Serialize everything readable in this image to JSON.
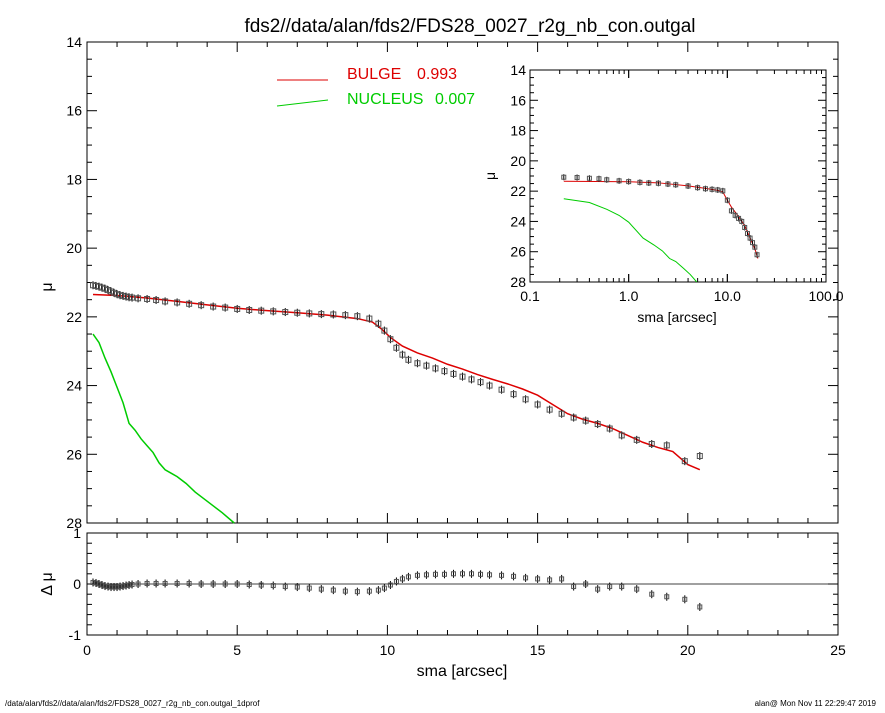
{
  "title": "fds2//data/alan/fds2/FDS28_0027_r2g_nb_con.outgal",
  "footer_left": "/data/alan/fds2//data/alan/fds2/FDS28_0027_r2g_nb_con.outgal_1dprof",
  "footer_right": "alan@  Mon Nov 11 22:29:47 2019",
  "colors": {
    "data": "#555555",
    "bulge": "#dd0000",
    "nucleus": "#00cc00",
    "axis": "#000000"
  },
  "chart_data": [
    {
      "type": "line",
      "panel": "main",
      "ylabel": "μ",
      "xlim": [
        0,
        25
      ],
      "ylim": [
        28,
        14
      ],
      "y_inverted": true,
      "yticks": [
        "14",
        "16",
        "18",
        "20",
        "22",
        "24",
        "26",
        "28"
      ],
      "legend": [
        {
          "name": "BULGE",
          "value": "0.993"
        },
        {
          "name": "NUCLEUS",
          "value": "0.007"
        }
      ],
      "legend_position": "top-center",
      "series": [
        {
          "name": "data",
          "style": "square-markers-with-errorbars",
          "x": [
            0.2,
            0.3,
            0.4,
            0.5,
            0.6,
            0.7,
            0.8,
            0.9,
            1.0,
            1.1,
            1.2,
            1.3,
            1.4,
            1.5,
            1.7,
            2.0,
            2.3,
            2.6,
            3.0,
            3.4,
            3.8,
            4.2,
            4.6,
            5.0,
            5.4,
            5.8,
            6.2,
            6.6,
            7.0,
            7.4,
            7.8,
            8.2,
            8.6,
            9.0,
            9.4,
            9.7,
            9.9,
            10.1,
            10.3,
            10.5,
            10.7,
            11.0,
            11.3,
            11.6,
            11.9,
            12.2,
            12.5,
            12.8,
            13.1,
            13.4,
            13.8,
            14.2,
            14.6,
            15.0,
            15.4,
            15.8,
            16.2,
            16.6,
            17.0,
            17.4,
            17.8,
            18.3,
            18.8,
            19.3,
            19.9,
            20.4
          ],
          "y": [
            21.08,
            21.1,
            21.12,
            21.15,
            21.18,
            21.22,
            21.26,
            21.3,
            21.34,
            21.37,
            21.39,
            21.41,
            21.43,
            21.44,
            21.46,
            21.48,
            21.51,
            21.55,
            21.58,
            21.62,
            21.66,
            21.7,
            21.73,
            21.77,
            21.8,
            21.82,
            21.84,
            21.86,
            21.88,
            21.9,
            21.92,
            21.93,
            21.95,
            21.98,
            22.05,
            22.2,
            22.4,
            22.65,
            22.9,
            23.1,
            23.25,
            23.35,
            23.42,
            23.5,
            23.58,
            23.66,
            23.74,
            23.82,
            23.9,
            24.0,
            24.12,
            24.25,
            24.4,
            24.55,
            24.7,
            24.82,
            24.93,
            25.02,
            25.12,
            25.25,
            25.45,
            25.58,
            25.7,
            25.74,
            26.2,
            26.05
          ]
        },
        {
          "name": "BULGE",
          "style": "line",
          "x": [
            0.2,
            1.0,
            2.0,
            3.0,
            4.0,
            5.0,
            6.0,
            7.0,
            8.0,
            9.0,
            9.5,
            9.8,
            10.1,
            10.5,
            11.0,
            11.5,
            12.0,
            12.5,
            13.0,
            13.5,
            14.0,
            14.5,
            15.0,
            15.5,
            16.0,
            16.5,
            17.0,
            17.5,
            18.0,
            18.5,
            19.0,
            19.5,
            20.0,
            20.4
          ],
          "y": [
            21.35,
            21.38,
            21.45,
            21.55,
            21.65,
            21.75,
            21.82,
            21.88,
            21.95,
            22.05,
            22.15,
            22.35,
            22.6,
            22.85,
            23.05,
            23.2,
            23.38,
            23.52,
            23.68,
            23.82,
            23.95,
            24.1,
            24.28,
            24.55,
            24.82,
            24.98,
            25.1,
            25.25,
            25.45,
            25.65,
            25.8,
            25.92,
            26.3,
            26.45
          ]
        },
        {
          "name": "NUCLEUS",
          "style": "line",
          "x": [
            0.2,
            0.4,
            0.6,
            0.8,
            1.0,
            1.2,
            1.4,
            1.6,
            1.8,
            2.0,
            2.2,
            2.4,
            2.6,
            2.8,
            3.0,
            3.3,
            3.6,
            3.9,
            4.2,
            4.5,
            4.9
          ],
          "y": [
            22.5,
            22.75,
            23.2,
            23.6,
            24.05,
            24.5,
            25.1,
            25.3,
            25.55,
            25.75,
            25.95,
            26.25,
            26.45,
            26.55,
            26.65,
            26.85,
            27.1,
            27.3,
            27.5,
            27.7,
            28.0
          ]
        }
      ]
    },
    {
      "type": "scatter",
      "panel": "residual",
      "xlabel": "sma [arcsec]",
      "ylabel": "Δ μ",
      "xlim": [
        0,
        25
      ],
      "ylim": [
        -1,
        1
      ],
      "xticks": [
        "0",
        "5",
        "10",
        "15",
        "20",
        "25"
      ],
      "yticks": [
        "-1",
        "0",
        "1"
      ],
      "series": [
        {
          "name": "residual",
          "x": [
            0.2,
            0.3,
            0.4,
            0.5,
            0.6,
            0.7,
            0.8,
            0.9,
            1.0,
            1.1,
            1.2,
            1.3,
            1.4,
            1.5,
            1.7,
            2.0,
            2.3,
            2.6,
            3.0,
            3.4,
            3.8,
            4.2,
            4.6,
            5.0,
            5.4,
            5.8,
            6.2,
            6.6,
            7.0,
            7.4,
            7.8,
            8.2,
            8.6,
            9.0,
            9.4,
            9.7,
            9.9,
            10.1,
            10.3,
            10.5,
            10.7,
            11.0,
            11.3,
            11.6,
            11.9,
            12.2,
            12.5,
            12.8,
            13.1,
            13.4,
            13.8,
            14.2,
            14.6,
            15.0,
            15.4,
            15.8,
            16.2,
            16.6,
            17.0,
            17.4,
            17.8,
            18.3,
            18.8,
            19.3,
            19.9,
            20.4
          ],
          "y": [
            0.03,
            0.02,
            0.0,
            -0.02,
            -0.04,
            -0.05,
            -0.06,
            -0.06,
            -0.06,
            -0.05,
            -0.04,
            -0.03,
            -0.02,
            -0.01,
            0.0,
            0.01,
            0.01,
            0.01,
            0.01,
            0.01,
            0.0,
            0.0,
            0.0,
            0.0,
            -0.01,
            -0.02,
            -0.03,
            -0.05,
            -0.06,
            -0.08,
            -0.1,
            -0.12,
            -0.14,
            -0.15,
            -0.14,
            -0.12,
            -0.08,
            -0.02,
            0.05,
            0.1,
            0.14,
            0.17,
            0.18,
            0.19,
            0.19,
            0.2,
            0.2,
            0.2,
            0.19,
            0.18,
            0.17,
            0.15,
            0.12,
            0.1,
            0.08,
            0.1,
            -0.05,
            0.0,
            -0.1,
            -0.05,
            -0.05,
            -0.1,
            -0.2,
            -0.25,
            -0.3,
            -0.45
          ]
        }
      ]
    },
    {
      "type": "line",
      "panel": "inset",
      "xlabel": "sma [arcsec]",
      "ylabel": "μ",
      "x_scale": "log",
      "xlim": [
        0.1,
        100.0
      ],
      "ylim": [
        28,
        14
      ],
      "y_inverted": true,
      "xticks": [
        "0.1",
        "1.0",
        "10.0",
        "100.0"
      ],
      "yticks": [
        "14",
        "16",
        "18",
        "20",
        "22",
        "24",
        "26",
        "28"
      ],
      "series": [
        {
          "name": "data",
          "x": [
            0.22,
            0.3,
            0.4,
            0.5,
            0.6,
            0.8,
            1.0,
            1.3,
            1.6,
            2.0,
            2.5,
            3.0,
            4.0,
            5.0,
            6.0,
            7.0,
            8.0,
            9.0,
            10.0,
            11.0,
            12.0,
            13.0,
            14.0,
            15.0,
            16.0,
            17.0,
            18.0,
            19.0,
            20.0
          ],
          "y": [
            21.08,
            21.1,
            21.15,
            21.18,
            21.25,
            21.32,
            21.37,
            21.42,
            21.46,
            21.48,
            21.53,
            21.58,
            21.66,
            21.77,
            21.84,
            21.88,
            21.92,
            21.98,
            22.6,
            23.3,
            23.6,
            23.8,
            24.0,
            24.4,
            24.8,
            25.1,
            25.4,
            25.7,
            26.2
          ]
        },
        {
          "name": "BULGE",
          "x": [
            0.22,
            1.0,
            2.0,
            4.0,
            6.0,
            8.0,
            9.0,
            10.0,
            11.0,
            13.0,
            15.0,
            17.0,
            19.0,
            20.4
          ],
          "y": [
            21.35,
            21.38,
            21.45,
            21.65,
            21.82,
            21.95,
            22.05,
            22.6,
            23.05,
            23.68,
            24.28,
            25.1,
            25.8,
            26.45
          ]
        },
        {
          "name": "NUCLEUS",
          "x": [
            0.22,
            0.4,
            0.6,
            0.8,
            1.0,
            1.4,
            1.8,
            2.2,
            2.6,
            3.0,
            3.6,
            4.2,
            4.9
          ],
          "y": [
            22.5,
            22.75,
            23.2,
            23.6,
            24.05,
            25.1,
            25.55,
            25.95,
            26.45,
            26.65,
            27.1,
            27.5,
            28.0
          ]
        }
      ]
    }
  ]
}
